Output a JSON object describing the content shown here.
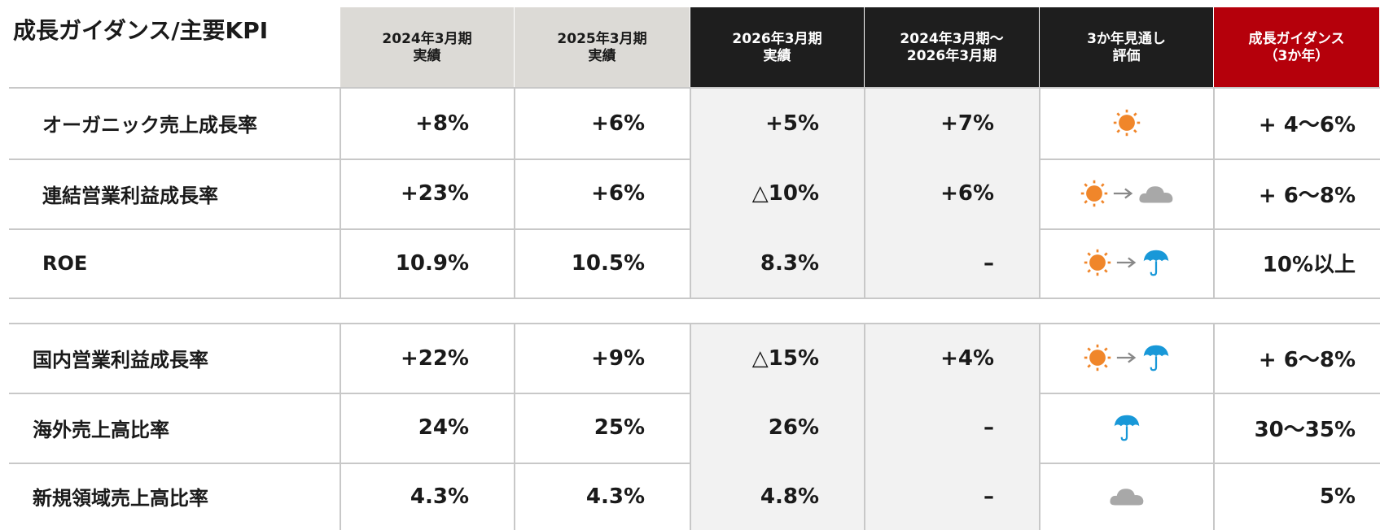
{
  "title": "成長ガイダンス/主要KPI",
  "table": {
    "header": [
      "2024年3月期\n実績",
      "2025年3月期\n実績",
      "2026年3月期\n実績",
      "2024年3月期〜\n2026年3月期",
      "3か年見通し\n評価",
      "成長ガイダンス\n（3か年）"
    ],
    "groups": [
      [
        [
          "オーガニック売上成長率",
          "+8%",
          "+6%",
          "+5%",
          "+7%",
          "+ 4〜6%"
        ],
        [
          "連結営業利益成長率",
          "+23%",
          "+6%",
          "△10%",
          "+6%",
          "+ 6〜8%"
        ],
        [
          "ROE",
          "10.9%",
          "10.5%",
          "8.3%",
          "–",
          "10%以上"
        ]
      ],
      [
        [
          "国内営業利益成長率",
          "+22%",
          "+9%",
          "△15%",
          "+4%",
          "+ 6〜8%"
        ],
        [
          "海外売上高比率",
          "24%",
          "25%",
          "26%",
          "–",
          "30〜35%"
        ],
        [
          "新規領域売上高比率",
          "4.3%",
          "4.3%",
          "4.8%",
          "–",
          "5%"
        ]
      ]
    ]
  }
}
